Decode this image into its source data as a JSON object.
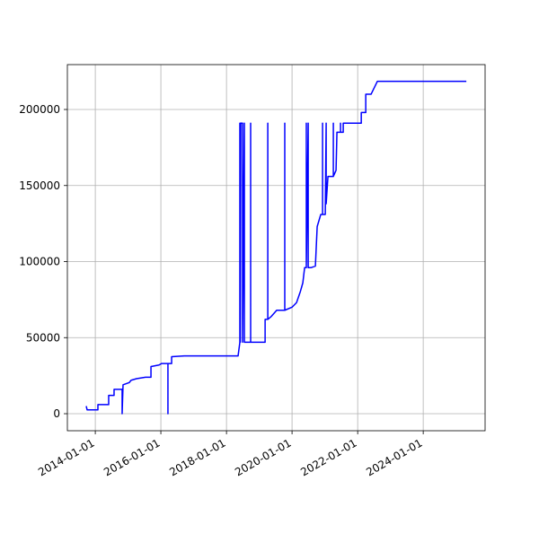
{
  "chart_data": {
    "type": "line",
    "color": "#0000ff",
    "grid": true,
    "x": [
      "2013-09-22",
      "2013-10-02",
      "2014-01-30",
      "2014-01-30",
      "2014-05-30",
      "2014-05-30",
      "2014-07-29",
      "2014-07-29",
      "2014-10-27",
      "2014-10-27",
      "2014-11-06",
      "2015-01-15",
      "2015-02-04",
      "2015-04-05",
      "2015-07-14",
      "2015-09-13",
      "2015-09-13",
      "2015-12-12",
      "2016-01-10",
      "2016-03-20",
      "2016-03-20",
      "2016-03-20",
      "2016-04-30",
      "2016-04-30",
      "2016-09-17",
      "2018-05-10",
      "2018-05-30",
      "2018-05-30",
      "2018-06-04",
      "2018-06-09",
      "2018-06-29",
      "2018-06-29",
      "2018-07-19",
      "2018-07-19",
      "2018-09-27",
      "2018-09-27",
      "2018-09-27",
      "2019-03-07",
      "2019-03-07",
      "2019-04-06",
      "2019-04-06",
      "2019-04-06",
      "2019-05-16",
      "2019-07-14",
      "2019-10-12",
      "2019-10-12",
      "2019-10-12",
      "2020-01-01",
      "2020-02-20",
      "2020-04-01",
      "2020-04-30",
      "2020-05-20",
      "2020-06-08",
      "2020-06-08",
      "2020-06-08",
      "2020-06-29",
      "2020-06-29",
      "2020-07-29",
      "2020-09-17",
      "2020-10-07",
      "2020-10-27",
      "2020-11-16",
      "2020-12-06",
      "2020-12-06",
      "2020-12-06",
      "2021-01-05",
      "2021-01-15",
      "2021-01-15",
      "2021-02-04",
      "2021-04-05",
      "2021-04-05",
      "2021-04-05",
      "2021-05-05",
      "2021-05-15",
      "2021-06-24",
      "2021-06-24",
      "2021-06-24",
      "2021-07-24",
      "2021-07-24",
      "2022-02-10",
      "2022-02-10",
      "2022-04-01",
      "2022-04-01",
      "2022-05-30",
      "2022-08-08",
      "2025-04-25"
    ],
    "values": [
      5000,
      2500,
      2500,
      6000,
      6000,
      12000,
      12000,
      16000,
      16000,
      0,
      19000,
      20500,
      22000,
      23000,
      24000,
      24000,
      31000,
      32000,
      33000,
      33000,
      0,
      33000,
      33000,
      37500,
      38000,
      38000,
      47000,
      191000,
      47000,
      191000,
      191000,
      47000,
      191000,
      47000,
      47000,
      191000,
      47000,
      47000,
      62000,
      62000,
      191000,
      62000,
      64000,
      68000,
      68000,
      191000,
      68000,
      70000,
      73000,
      80000,
      86000,
      96000,
      96000,
      191000,
      96000,
      191000,
      96000,
      96000,
      97000,
      123000,
      127000,
      131000,
      131000,
      191000,
      131000,
      131000,
      191000,
      138000,
      156000,
      156000,
      191000,
      156000,
      160000,
      185000,
      185000,
      191000,
      185000,
      185000,
      191000,
      191000,
      198000,
      198000,
      210000,
      210000,
      218500,
      218500
    ],
    "xlim": [
      "2013-02-24",
      "2025-11-20"
    ],
    "xticks": [
      "2014-01-01",
      "2016-01-01",
      "2018-01-01",
      "2020-01-01",
      "2022-01-01",
      "2024-01-01"
    ],
    "ylim": [
      -11200,
      229500
    ],
    "yticks": [
      0,
      50000,
      100000,
      150000,
      200000
    ]
  }
}
